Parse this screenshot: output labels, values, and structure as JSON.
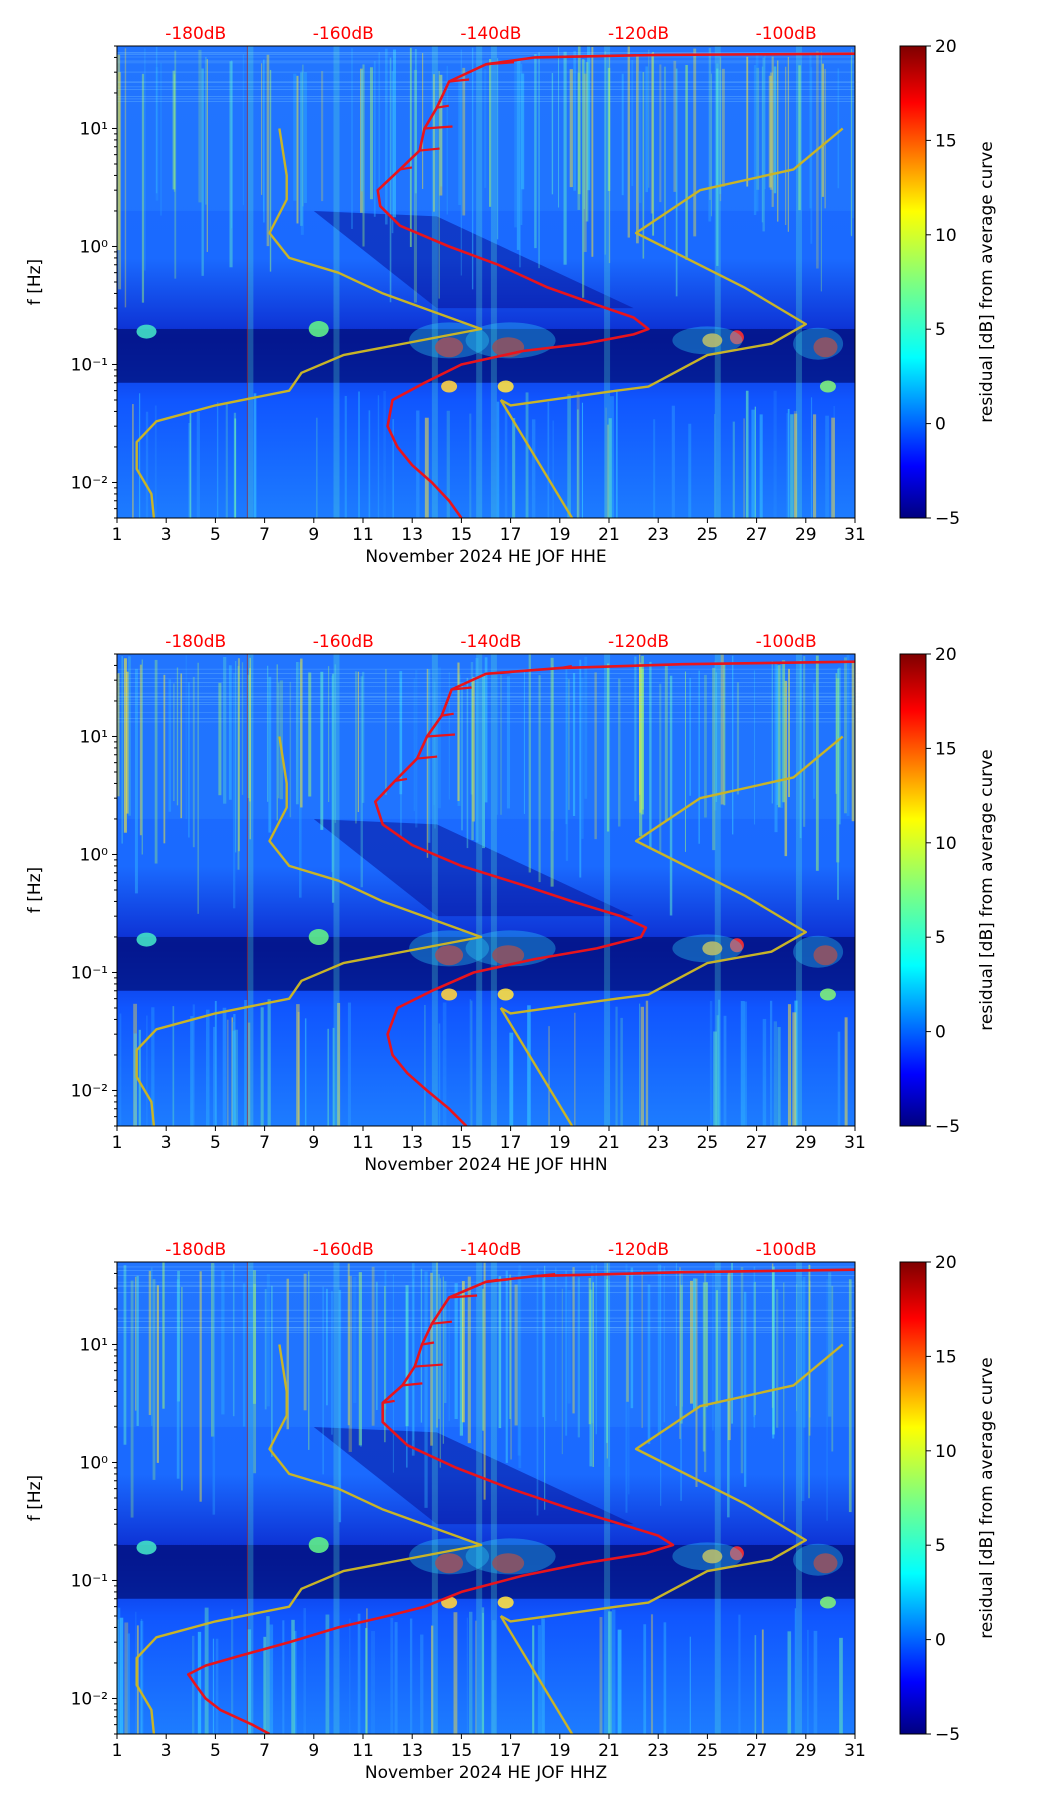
{
  "figure": {
    "colorbar_label": "residual [dB] from average curve",
    "ylabel": "f [Hz]",
    "colors": {
      "db_labels": "#ff0000",
      "red_curve": "#e8141c",
      "yellow_curve": "#c8b428"
    }
  },
  "chart_data": [
    {
      "type": "heatmap",
      "title": "",
      "xlabel": "November 2024 HE JOF  HHE",
      "ylabel": "f [Hz]",
      "xlim": [
        1,
        31
      ],
      "ylim": [
        0.005,
        50
      ],
      "yscale": "log",
      "x_ticks": [
        "1",
        "3",
        "5",
        "7",
        "9",
        "11",
        "13",
        "15",
        "17",
        "19",
        "21",
        "23",
        "25",
        "27",
        "29",
        "31"
      ],
      "y_ticks": [
        {
          "value": 0.01,
          "label": "10⁻²"
        },
        {
          "value": 0.1,
          "label": "10⁻¹"
        },
        {
          "value": 1,
          "label": "10⁰"
        },
        {
          "value": 10,
          "label": "10¹"
        }
      ],
      "top_db_ticks": [
        {
          "x": 4.2,
          "label": "-180dB"
        },
        {
          "x": 10.2,
          "label": "-160dB"
        },
        {
          "x": 16.2,
          "label": "-140dB"
        },
        {
          "x": 22.2,
          "label": "-120dB"
        },
        {
          "x": 28.2,
          "label": "-100dB"
        }
      ],
      "colorbar": {
        "label": "residual [dB] from average curve",
        "range": [
          -5,
          20
        ],
        "ticks": [
          "−5",
          "0",
          "5",
          "10",
          "15",
          "20"
        ]
      },
      "series": [
        {
          "name": "median PSD (red)",
          "points": [
            [
              15,
              0.005
            ],
            [
              14.5,
              0.007
            ],
            [
              13.8,
              0.01
            ],
            [
              13,
              0.014
            ],
            [
              12.4,
              0.02
            ],
            [
              12,
              0.03
            ],
            [
              12.2,
              0.05
            ],
            [
              13.5,
              0.07
            ],
            [
              15,
              0.1
            ],
            [
              17.5,
              0.13
            ],
            [
              20,
              0.15
            ],
            [
              22,
              0.18
            ],
            [
              22.6,
              0.2
            ],
            [
              22,
              0.25
            ],
            [
              20.5,
              0.32
            ],
            [
              18.5,
              0.45
            ],
            [
              16.5,
              0.7
            ],
            [
              14.5,
              1
            ],
            [
              12.5,
              1.5
            ],
            [
              11.7,
              2.2
            ],
            [
              11.6,
              3
            ],
            [
              12.5,
              4.5
            ],
            [
              13.3,
              6.5
            ],
            [
              13.5,
              10
            ],
            [
              14,
              15
            ],
            [
              14.5,
              25
            ],
            [
              16,
              35
            ],
            [
              18,
              40
            ],
            [
              23,
              42
            ],
            [
              31,
              43
            ]
          ]
        },
        {
          "name": "noise model (yellow)",
          "points": [
            [
              2.5,
              0.005
            ],
            [
              2.4,
              0.008
            ],
            [
              1.8,
              0.013
            ],
            [
              1.8,
              0.022
            ],
            [
              2.6,
              0.033
            ],
            [
              5,
              0.045
            ],
            [
              8,
              0.06
            ],
            [
              8.5,
              0.085
            ],
            [
              10.2,
              0.12
            ],
            [
              15.8,
              0.2
            ],
            [
              11.8,
              0.4
            ],
            [
              10,
              0.6
            ],
            [
              8,
              0.8
            ],
            [
              7.2,
              1.3
            ],
            [
              7.9,
              2.5
            ],
            [
              7.9,
              4
            ],
            [
              7.6,
              10
            ],
            [
              16.6,
              0.05
            ],
            [
              17,
              0.045
            ],
            [
              21.3,
              0.06
            ],
            [
              22.6,
              0.065
            ],
            [
              25,
              0.12
            ],
            [
              27.6,
              0.15
            ],
            [
              29,
              0.22
            ],
            [
              26.5,
              0.45
            ],
            [
              22.1,
              1.3
            ],
            [
              24.7,
              3
            ],
            [
              28.5,
              4.5
            ],
            [
              30.5,
              10
            ]
          ]
        }
      ]
    },
    {
      "type": "heatmap",
      "title": "",
      "xlabel": "November 2024 HE JOF  HHN",
      "ylabel": "f [Hz]",
      "xlim": [
        1,
        31
      ],
      "ylim": [
        0.005,
        50
      ],
      "yscale": "log",
      "x_ticks": [
        "1",
        "3",
        "5",
        "7",
        "9",
        "11",
        "13",
        "15",
        "17",
        "19",
        "21",
        "23",
        "25",
        "27",
        "29",
        "31"
      ],
      "y_ticks": [
        {
          "value": 0.01,
          "label": "10⁻²"
        },
        {
          "value": 0.1,
          "label": "10⁻¹"
        },
        {
          "value": 1,
          "label": "10⁰"
        },
        {
          "value": 10,
          "label": "10¹"
        }
      ],
      "top_db_ticks": [
        {
          "x": 4.2,
          "label": "-180dB"
        },
        {
          "x": 10.2,
          "label": "-160dB"
        },
        {
          "x": 16.2,
          "label": "-140dB"
        },
        {
          "x": 22.2,
          "label": "-120dB"
        },
        {
          "x": 28.2,
          "label": "-100dB"
        }
      ],
      "colorbar": {
        "label": "residual [dB] from average curve",
        "range": [
          -5,
          20
        ],
        "ticks": [
          "−5",
          "0",
          "5",
          "10",
          "15",
          "20"
        ]
      },
      "series": [
        {
          "name": "median PSD (red)",
          "points": [
            [
              15.2,
              0.005
            ],
            [
              14.5,
              0.007
            ],
            [
              13.6,
              0.01
            ],
            [
              12.8,
              0.014
            ],
            [
              12.2,
              0.02
            ],
            [
              12,
              0.03
            ],
            [
              12.4,
              0.05
            ],
            [
              13.8,
              0.07
            ],
            [
              15.5,
              0.1
            ],
            [
              18,
              0.13
            ],
            [
              20.5,
              0.16
            ],
            [
              22.3,
              0.2
            ],
            [
              22.5,
              0.24
            ],
            [
              21.5,
              0.3
            ],
            [
              19.5,
              0.4
            ],
            [
              17.5,
              0.55
            ],
            [
              15,
              0.8
            ],
            [
              13,
              1.2
            ],
            [
              11.8,
              1.8
            ],
            [
              11.5,
              2.8
            ],
            [
              12.3,
              4.2
            ],
            [
              13.2,
              6.5
            ],
            [
              13.6,
              10
            ],
            [
              14.2,
              15
            ],
            [
              14.6,
              25
            ],
            [
              16,
              34
            ],
            [
              19,
              38
            ],
            [
              24,
              41
            ],
            [
              31,
              43
            ]
          ]
        },
        {
          "name": "noise model (yellow)",
          "points": [
            [
              2.5,
              0.005
            ],
            [
              2.4,
              0.008
            ],
            [
              1.8,
              0.013
            ],
            [
              1.8,
              0.022
            ],
            [
              2.6,
              0.033
            ],
            [
              5,
              0.045
            ],
            [
              8,
              0.06
            ],
            [
              8.5,
              0.085
            ],
            [
              10.2,
              0.12
            ],
            [
              15.8,
              0.2
            ],
            [
              11.8,
              0.4
            ],
            [
              10,
              0.6
            ],
            [
              8,
              0.8
            ],
            [
              7.2,
              1.3
            ],
            [
              7.9,
              2.5
            ],
            [
              7.9,
              4
            ],
            [
              7.6,
              10
            ],
            [
              16.6,
              0.05
            ],
            [
              17,
              0.045
            ],
            [
              21.3,
              0.06
            ],
            [
              22.6,
              0.065
            ],
            [
              25,
              0.12
            ],
            [
              27.6,
              0.15
            ],
            [
              29,
              0.22
            ],
            [
              26.5,
              0.45
            ],
            [
              22.1,
              1.3
            ],
            [
              24.7,
              3
            ],
            [
              28.5,
              4.5
            ],
            [
              30.5,
              10
            ]
          ]
        }
      ]
    },
    {
      "type": "heatmap",
      "title": "",
      "xlabel": "November 2024 HE JOF  HHZ",
      "ylabel": "f [Hz]",
      "xlim": [
        1,
        31
      ],
      "ylim": [
        0.005,
        50
      ],
      "yscale": "log",
      "x_ticks": [
        "1",
        "3",
        "5",
        "7",
        "9",
        "11",
        "13",
        "15",
        "17",
        "19",
        "21",
        "23",
        "25",
        "27",
        "29",
        "31"
      ],
      "y_ticks": [
        {
          "value": 0.01,
          "label": "10⁻²"
        },
        {
          "value": 0.1,
          "label": "10⁻¹"
        },
        {
          "value": 1,
          "label": "10⁰"
        },
        {
          "value": 10,
          "label": "10¹"
        }
      ],
      "top_db_ticks": [
        {
          "x": 4.2,
          "label": "-180dB"
        },
        {
          "x": 10.2,
          "label": "-160dB"
        },
        {
          "x": 16.2,
          "label": "-140dB"
        },
        {
          "x": 22.2,
          "label": "-120dB"
        },
        {
          "x": 28.2,
          "label": "-100dB"
        }
      ],
      "colorbar": {
        "label": "residual [dB] from average curve",
        "range": [
          -5,
          20
        ],
        "ticks": [
          "−5",
          "0",
          "5",
          "10",
          "15",
          "20"
        ]
      },
      "series": [
        {
          "name": "median PSD (red)",
          "points": [
            [
              7.2,
              0.005
            ],
            [
              6.5,
              0.006
            ],
            [
              5.2,
              0.008
            ],
            [
              4.6,
              0.01
            ],
            [
              4.2,
              0.013
            ],
            [
              3.9,
              0.016
            ],
            [
              4.6,
              0.019
            ],
            [
              6,
              0.023
            ],
            [
              8,
              0.03
            ],
            [
              10,
              0.04
            ],
            [
              12,
              0.05
            ],
            [
              13.5,
              0.06
            ],
            [
              15,
              0.08
            ],
            [
              17.5,
              0.11
            ],
            [
              20,
              0.14
            ],
            [
              22.5,
              0.17
            ],
            [
              23.6,
              0.2
            ],
            [
              23,
              0.24
            ],
            [
              21.5,
              0.3
            ],
            [
              19.5,
              0.4
            ],
            [
              17,
              0.6
            ],
            [
              14.8,
              0.9
            ],
            [
              12.8,
              1.4
            ],
            [
              11.8,
              2.2
            ],
            [
              11.8,
              3.2
            ],
            [
              12.6,
              4.5
            ],
            [
              13.1,
              6.5
            ],
            [
              13.4,
              10
            ],
            [
              13.8,
              15
            ],
            [
              14.5,
              25
            ],
            [
              16,
              34
            ],
            [
              18,
              38
            ],
            [
              24,
              41
            ],
            [
              31,
              43
            ]
          ]
        },
        {
          "name": "noise model (yellow)",
          "points": [
            [
              2.5,
              0.005
            ],
            [
              2.4,
              0.008
            ],
            [
              1.8,
              0.013
            ],
            [
              1.8,
              0.022
            ],
            [
              2.6,
              0.033
            ],
            [
              5,
              0.045
            ],
            [
              8,
              0.06
            ],
            [
              8.5,
              0.085
            ],
            [
              10.2,
              0.12
            ],
            [
              15.8,
              0.2
            ],
            [
              11.8,
              0.4
            ],
            [
              10,
              0.6
            ],
            [
              8,
              0.8
            ],
            [
              7.2,
              1.3
            ],
            [
              7.9,
              2.5
            ],
            [
              7.9,
              4
            ],
            [
              7.6,
              10
            ],
            [
              16.6,
              0.05
            ],
            [
              17,
              0.045
            ],
            [
              21.3,
              0.06
            ],
            [
              22.6,
              0.065
            ],
            [
              25,
              0.12
            ],
            [
              27.6,
              0.15
            ],
            [
              29,
              0.22
            ],
            [
              26.5,
              0.45
            ],
            [
              22.1,
              1.3
            ],
            [
              24.7,
              3
            ],
            [
              28.5,
              4.5
            ],
            [
              30.5,
              10
            ]
          ]
        }
      ]
    }
  ]
}
